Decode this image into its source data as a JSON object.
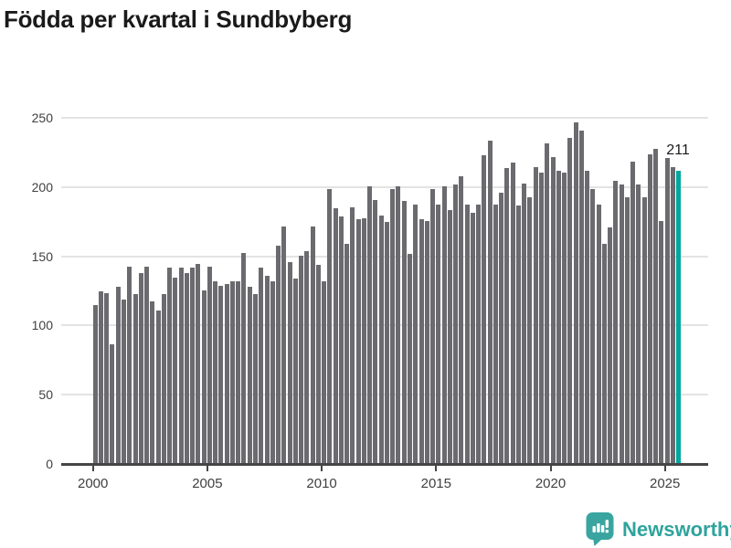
{
  "title": "Födda per kvartal i Sundbyberg",
  "annotation": {
    "label": "211"
  },
  "watermark": {
    "brand": "Newsworthy",
    "icon": "newsworthy-bubble-chart-icon"
  },
  "colors": {
    "bar": "#6b6b6f",
    "highlight": "#00a79d",
    "grid": "#e3e3e3",
    "axis": "#454545",
    "tick_label": "#404040",
    "title": "#1a1a1a",
    "logo": "#3aa5a0",
    "logo_text": "#2fa39d"
  },
  "chart_data": {
    "type": "bar",
    "title": "Födda per kvartal i Sundbyberg",
    "xlabel": "",
    "ylabel": "",
    "x_start_quarter": "2000-Q1",
    "x_end_quarter": "2025-Q3",
    "x_tick_labels": [
      "2000",
      "2005",
      "2010",
      "2015",
      "2020",
      "2025"
    ],
    "y_ticks": [
      0,
      50,
      100,
      150,
      200,
      250
    ],
    "ylim": [
      0,
      250
    ],
    "grid": "horizontal",
    "legend": "none",
    "highlight_last_bar": true,
    "last_bar_label": "211",
    "values": [
      114,
      124,
      123,
      86,
      127,
      118,
      142,
      122,
      137,
      142,
      117,
      110,
      122,
      141,
      134,
      141,
      137,
      141,
      144,
      125,
      142,
      131,
      128,
      129,
      131,
      131,
      152,
      127,
      122,
      141,
      135,
      131,
      157,
      171,
      145,
      133,
      150,
      153,
      171,
      143,
      131,
      198,
      184,
      178,
      158,
      185,
      176,
      177,
      200,
      190,
      179,
      174,
      198,
      200,
      189,
      151,
      187,
      176,
      175,
      198,
      187,
      200,
      183,
      201,
      207,
      187,
      181,
      187,
      222,
      233,
      187,
      195,
      213,
      217,
      186,
      202,
      192,
      214,
      210,
      231,
      221,
      211,
      210,
      235,
      246,
      240,
      211,
      198,
      187,
      158,
      170,
      204,
      201,
      192,
      218,
      201,
      192,
      223,
      227,
      175,
      220,
      214,
      211
    ]
  }
}
